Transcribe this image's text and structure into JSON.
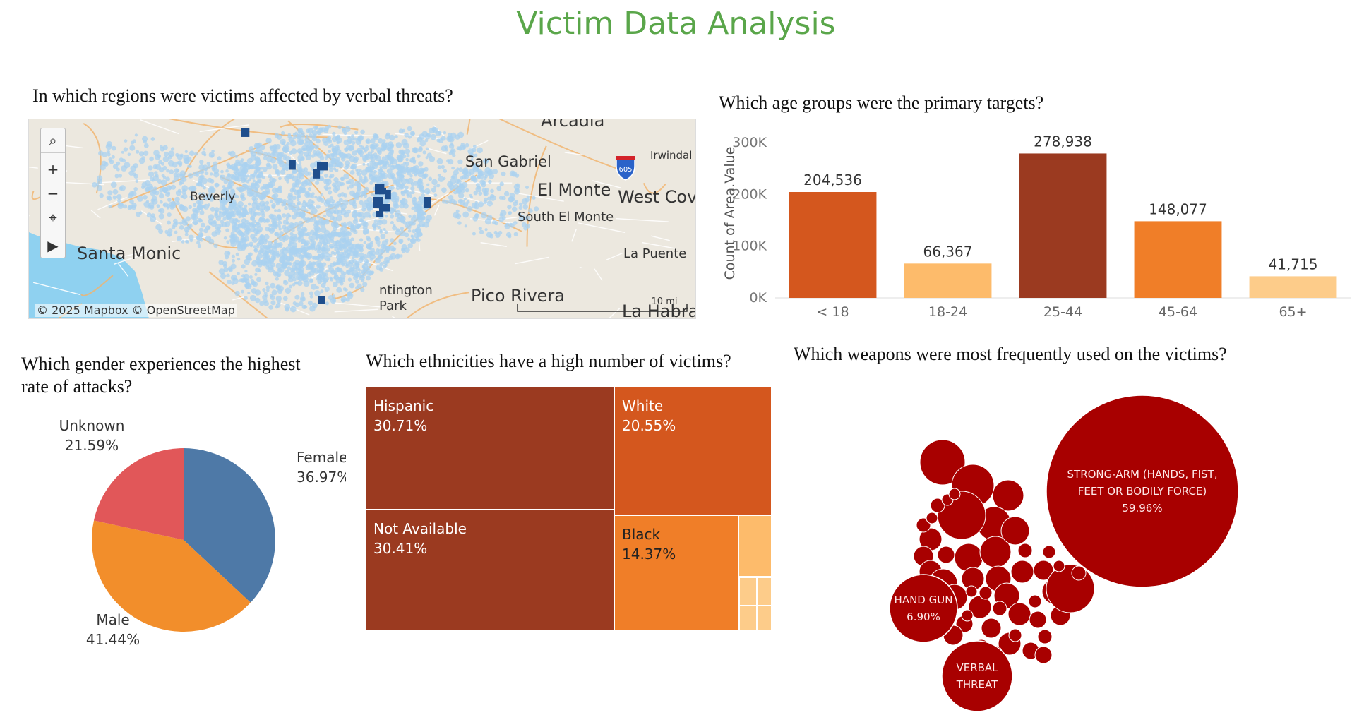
{
  "dashboard": {
    "title": "Victim Data Analysis"
  },
  "questions": {
    "map": "In which regions were victims affected by verbal threats?",
    "age": "Which age groups were the primary targets?",
    "gender_line1": "Which gender experiences the highest",
    "gender_line2": "rate of attacks?",
    "ethnicity": "Which ethnicities have a high number of victims?",
    "weapons": "Which weapons were most frequently used on the victims?"
  },
  "map": {
    "attribution": "© 2025 Mapbox © OpenStreetMap",
    "scale_label": "10 mi",
    "labels": {
      "arcadia": "Arcadia",
      "san_gabriel": "San Gabriel",
      "el_monte": "El Monte",
      "west_covina": "West Cov",
      "south_el_monte": "South El Monte",
      "irwindale": "Irwindal",
      "beverly": "Beverly",
      "santa_monica": "Santa Monic",
      "la_puente": "La Puente",
      "huntington_park_1": "ntington",
      "huntington_park_2": "Park",
      "pico_rivera": "Pico Rivera",
      "la_habra": "La Habra",
      "shield_605": "605"
    },
    "controls": {
      "search": "⌕",
      "zoom_in": "+",
      "zoom_out": "−",
      "select": "⌖",
      "expand": "▶"
    }
  },
  "chart_data": [
    {
      "id": "age_groups",
      "type": "bar",
      "title": "Which age groups were the primary targets?",
      "ylabel": "Count of Area.Value",
      "ylim": [
        0,
        300000
      ],
      "yticks": [
        "0K",
        "100K",
        "200K",
        "300K"
      ],
      "categories": [
        "< 18",
        "18-24",
        "25-44",
        "45-64",
        "65+"
      ],
      "values": [
        204536,
        66367,
        278938,
        148077,
        41715
      ],
      "value_labels": [
        "204,536",
        "66,367",
        "278,938",
        "148,077",
        "41,715"
      ],
      "colors": [
        "#d4571e",
        "#fdbb6b",
        "#9b3a20",
        "#f07e28",
        "#fdcc8a"
      ]
    },
    {
      "id": "gender",
      "type": "pie",
      "title": "Which gender experiences the highest rate of attacks?",
      "slices": [
        {
          "label": "Female",
          "value": 36.97,
          "pct": "36.97%",
          "color": "#4e79a7"
        },
        {
          "label": "Male",
          "value": 41.44,
          "pct": "41.44%",
          "color": "#f28e2b"
        },
        {
          "label": "Unknown",
          "value": 21.59,
          "pct": "21.59%",
          "color": "#e15759"
        }
      ]
    },
    {
      "id": "ethnicity",
      "type": "treemap",
      "title": "Which ethnicities have a high number of victims?",
      "items": [
        {
          "label": "Hispanic",
          "value": 30.71,
          "pct": "30.71%",
          "color": "#9b3a20"
        },
        {
          "label": "Not Available",
          "value": 30.41,
          "pct": "30.41%",
          "color": "#9b3a20"
        },
        {
          "label": "White",
          "value": 20.55,
          "pct": "20.55%",
          "color": "#d4571e"
        },
        {
          "label": "Black",
          "value": 14.37,
          "pct": "14.37%",
          "color": "#f07e28"
        }
      ]
    },
    {
      "id": "weapons",
      "type": "bubble",
      "title": "Which weapons were most frequently used on the victims?",
      "color": "#a80000",
      "labeled": [
        {
          "label_lines": [
            "STRONG-ARM (HANDS, FIST,",
            "FEET OR BODILY FORCE)"
          ],
          "pct": "59.96%",
          "value": 59.96
        },
        {
          "label_lines": [
            "HAND GUN"
          ],
          "pct": "6.90%",
          "value": 6.9
        },
        {
          "label_lines": [
            "VERBAL",
            "THREAT"
          ],
          "pct": "",
          "value": null
        }
      ]
    }
  ]
}
